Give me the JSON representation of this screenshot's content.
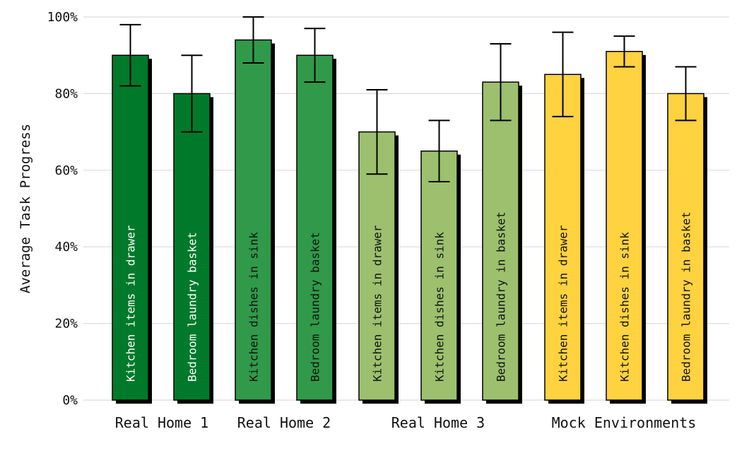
{
  "chart_data": {
    "type": "bar",
    "ylabel": "Average Task Progress",
    "ylim": [
      0,
      100
    ],
    "yticks": [
      "0%",
      "20%",
      "40%",
      "60%",
      "80%",
      "100%"
    ],
    "grid": true,
    "groups": [
      {
        "name": "Real Home 1",
        "color": "#007a2a",
        "text_color": "#ffffff",
        "bars": [
          {
            "label": "Kitchen items in drawer",
            "value": 90,
            "err": [
              82,
              98
            ]
          },
          {
            "label": "Bedroom laundry basket",
            "value": 80,
            "err": [
              70,
              90
            ]
          }
        ]
      },
      {
        "name": "Real Home 2",
        "color": "#31994a",
        "text_color": "#111111",
        "bars": [
          {
            "label": "Kitchen dishes in sink",
            "value": 94,
            "err": [
              88,
              100
            ]
          },
          {
            "label": "Bedroom laundry basket",
            "value": 90,
            "err": [
              83,
              97
            ]
          }
        ]
      },
      {
        "name": "Real Home 3",
        "color": "#9cc06e",
        "text_color": "#111111",
        "bars": [
          {
            "label": "Kitchen items in drawer",
            "value": 70,
            "err": [
              59,
              81
            ]
          },
          {
            "label": "Kitchen dishes in sink",
            "value": 65,
            "err": [
              57,
              73
            ]
          },
          {
            "label": "Bedroom laundry in basket",
            "value": 83,
            "err": [
              73,
              93
            ]
          }
        ]
      },
      {
        "name": "Mock Environments",
        "color": "#ffd23f",
        "text_color": "#111111",
        "bars": [
          {
            "label": "Kitchen items in drawer",
            "value": 85,
            "err": [
              74,
              96
            ]
          },
          {
            "label": "Kitchen dishes in sink",
            "value": 91,
            "err": [
              87,
              95
            ]
          },
          {
            "label": "Bedroom laundry in basket",
            "value": 80,
            "err": [
              73,
              87
            ]
          }
        ]
      }
    ]
  }
}
